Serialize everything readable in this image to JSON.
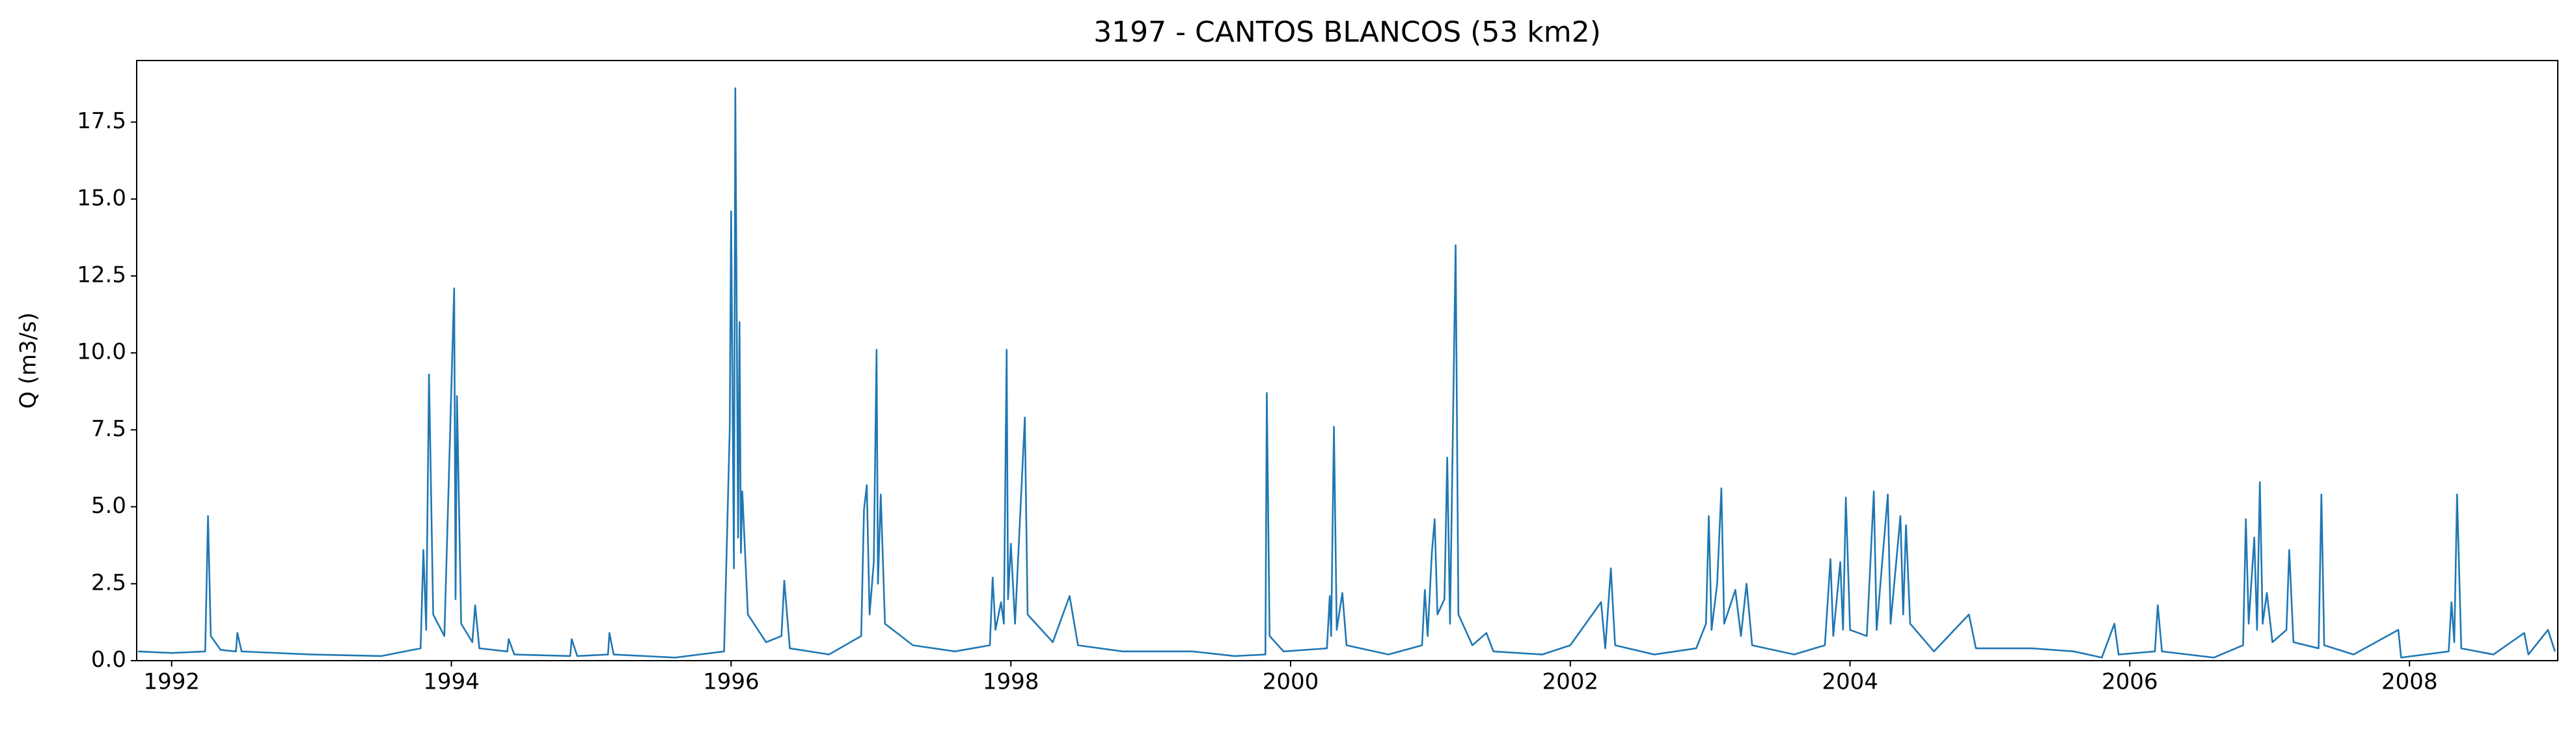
{
  "chart_data": {
    "type": "line",
    "title": "3197 - CANTOS BLANCOS (53 km2)",
    "y_label": "Q (m3/s)",
    "xlim": [
      1991.75,
      2009.06
    ],
    "xticks": [
      1992,
      1994,
      1996,
      1998,
      2000,
      2002,
      2004,
      2006,
      2008
    ],
    "ylim": [
      0,
      19.5
    ],
    "yticks": [
      {
        "value": 0,
        "label": "0.0"
      },
      2.5,
      {
        "value": 5,
        "label": "5.0"
      },
      7.5,
      {
        "value": 10,
        "label": "10.0"
      },
      12.5,
      {
        "value": 15,
        "label": "15.0"
      },
      17.5
    ],
    "grid": false,
    "series": [
      {
        "color": "#1f77b4",
        "x": [
          1991.76,
          1992.0,
          1992.24,
          1992.26,
          1992.28,
          1992.35,
          1992.46,
          1992.47,
          1992.5,
          1993.0,
          1993.5,
          1993.78,
          1993.8,
          1993.82,
          1993.84,
          1993.87,
          1993.95,
          1994.02,
          1994.03,
          1994.04,
          1994.07,
          1994.15,
          1994.17,
          1994.2,
          1994.4,
          1994.41,
          1994.45,
          1994.85,
          1994.86,
          1994.9,
          1995.12,
          1995.13,
          1995.16,
          1995.6,
          1995.95,
          1995.99,
          1996.0,
          1996.02,
          1996.03,
          1996.05,
          1996.06,
          1996.07,
          1996.08,
          1996.12,
          1996.25,
          1996.36,
          1996.38,
          1996.42,
          1996.7,
          1996.93,
          1996.95,
          1996.97,
          1996.99,
          1997.02,
          1997.04,
          1997.05,
          1997.07,
          1997.1,
          1997.3,
          1997.6,
          1997.85,
          1997.87,
          1997.89,
          1997.93,
          1997.95,
          1997.97,
          1997.98,
          1998.0,
          1998.03,
          1998.1,
          1998.12,
          1998.3,
          1998.42,
          1998.48,
          1998.8,
          1999.3,
          1999.6,
          1999.82,
          1999.83,
          1999.85,
          1999.95,
          2000.26,
          2000.28,
          2000.29,
          2000.31,
          2000.33,
          2000.37,
          2000.4,
          2000.7,
          2000.94,
          2000.96,
          2000.98,
          2001.01,
          2001.03,
          2001.05,
          2001.1,
          2001.12,
          2001.14,
          2001.18,
          2001.2,
          2001.3,
          2001.4,
          2001.45,
          2001.8,
          2002.0,
          2002.22,
          2002.25,
          2002.29,
          2002.32,
          2002.6,
          2002.9,
          2002.97,
          2002.99,
          2003.01,
          2003.05,
          2003.08,
          2003.1,
          2003.18,
          2003.22,
          2003.26,
          2003.3,
          2003.6,
          2003.82,
          2003.86,
          2003.88,
          2003.93,
          2003.95,
          2003.97,
          2004.0,
          2004.12,
          2004.17,
          2004.19,
          2004.27,
          2004.29,
          2004.36,
          2004.38,
          2004.4,
          2004.43,
          2004.6,
          2004.85,
          2004.9,
          2005.3,
          2005.6,
          2005.8,
          2005.89,
          2005.92,
          2006.18,
          2006.2,
          2006.23,
          2006.6,
          2006.81,
          2006.83,
          2006.85,
          2006.89,
          2006.91,
          2006.93,
          2006.95,
          2006.98,
          2007.02,
          2007.12,
          2007.14,
          2007.17,
          2007.35,
          2007.37,
          2007.39,
          2007.6,
          2007.92,
          2007.94,
          2008.28,
          2008.3,
          2008.32,
          2008.34,
          2008.37,
          2008.6,
          2008.82,
          2008.85,
          2008.99,
          2009.04
        ],
        "values": [
          0.3,
          0.25,
          0.3,
          4.7,
          0.8,
          0.35,
          0.3,
          0.9,
          0.3,
          0.2,
          0.15,
          0.4,
          3.6,
          1.0,
          9.3,
          1.5,
          0.8,
          12.1,
          2.0,
          8.6,
          1.2,
          0.6,
          1.8,
          0.4,
          0.3,
          0.7,
          0.2,
          0.15,
          0.7,
          0.15,
          0.2,
          0.9,
          0.2,
          0.1,
          0.3,
          7.5,
          14.6,
          3.0,
          18.6,
          4.0,
          11.0,
          3.5,
          5.5,
          1.5,
          0.6,
          0.8,
          2.6,
          0.4,
          0.2,
          0.8,
          4.9,
          5.7,
          1.5,
          3.2,
          10.1,
          2.5,
          5.4,
          1.2,
          0.5,
          0.3,
          0.5,
          2.7,
          1.0,
          1.9,
          1.2,
          10.1,
          2.0,
          3.8,
          1.2,
          7.9,
          1.5,
          0.6,
          2.1,
          0.5,
          0.3,
          0.3,
          0.15,
          0.2,
          8.7,
          0.8,
          0.3,
          0.4,
          2.1,
          0.8,
          7.6,
          1.0,
          2.2,
          0.5,
          0.2,
          0.5,
          2.3,
          0.8,
          3.5,
          4.6,
          1.5,
          2.0,
          6.6,
          1.2,
          13.5,
          1.5,
          0.5,
          0.9,
          0.3,
          0.2,
          0.5,
          1.9,
          0.4,
          3.0,
          0.5,
          0.2,
          0.4,
          1.2,
          4.7,
          1.0,
          2.5,
          5.6,
          1.2,
          2.3,
          0.8,
          2.5,
          0.5,
          0.2,
          0.5,
          3.3,
          0.8,
          3.2,
          1.0,
          5.3,
          1.0,
          0.8,
          5.5,
          1.0,
          5.4,
          1.2,
          4.7,
          1.5,
          4.4,
          1.2,
          0.3,
          1.5,
          0.4,
          0.4,
          0.3,
          0.1,
          1.2,
          0.2,
          0.3,
          1.8,
          0.3,
          0.1,
          0.5,
          4.6,
          1.2,
          4.0,
          1.0,
          5.8,
          1.2,
          2.2,
          0.6,
          1.0,
          3.6,
          0.6,
          0.4,
          5.4,
          0.5,
          0.2,
          1.0,
          0.1,
          0.3,
          1.9,
          0.6,
          5.4,
          0.4,
          0.2,
          0.9,
          0.2,
          1.0,
          0.3
        ]
      }
    ]
  }
}
